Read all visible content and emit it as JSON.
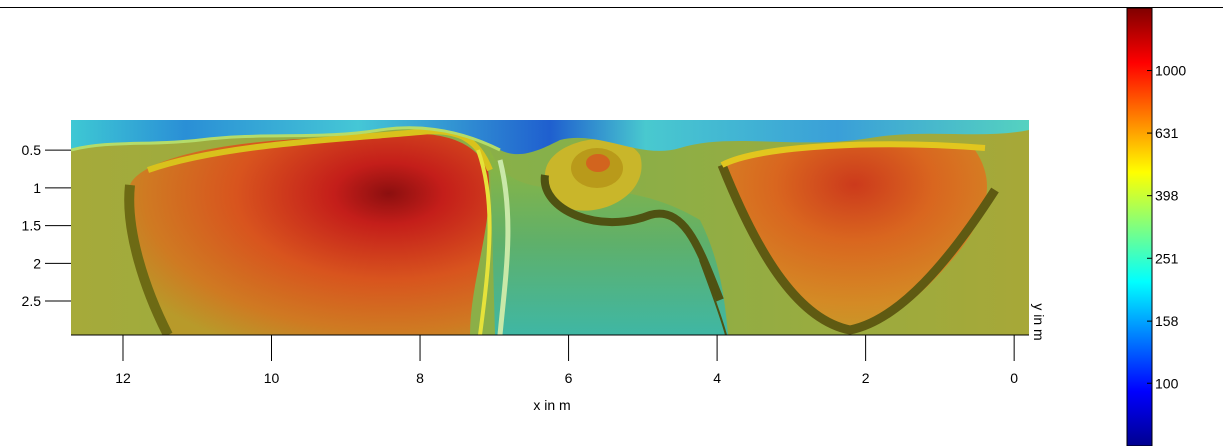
{
  "chart_data": {
    "type": "heatmap",
    "xlabel": "x in m",
    "ylabel": "y in m",
    "xlim": [
      12.7,
      -0.2
    ],
    "ylim": [
      0.1,
      2.95
    ],
    "x_ticks": [
      12,
      10,
      8,
      6,
      4,
      2,
      0
    ],
    "y_ticks": [
      0.5,
      1,
      1.5,
      2,
      2.5
    ],
    "colorbar": {
      "ticks": [
        100,
        158,
        251,
        398,
        631,
        1000
      ],
      "min": 63,
      "max": 1585,
      "scale": "log"
    },
    "grid": false
  }
}
